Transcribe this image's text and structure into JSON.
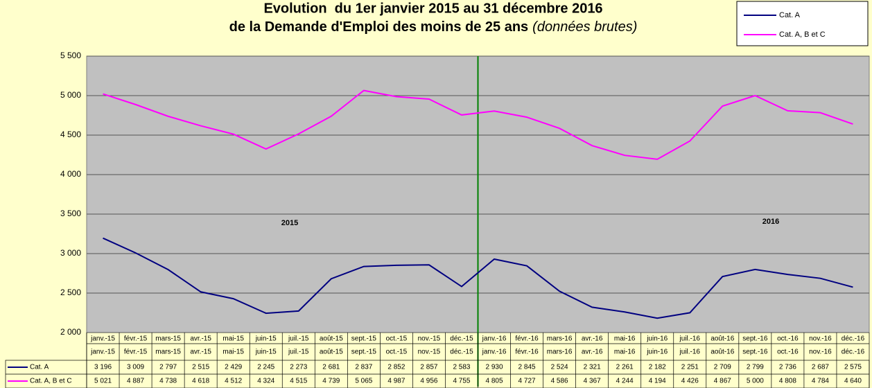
{
  "chart_data": {
    "type": "line",
    "title": [
      "Evolution  du 1er janvier 2015 au 31 décembre 2016",
      "de la Demande d'Emploi des moins de 25 ans"
    ],
    "subtitle": "(données brutes)",
    "categories": [
      "janv.-15",
      "févr.-15",
      "mars-15",
      "avr.-15",
      "mai-15",
      "juin-15",
      "juil.-15",
      "août-15",
      "sept.-15",
      "oct.-15",
      "nov.-15",
      "déc.-15",
      "janv.-16",
      "févr.-16",
      "mars-16",
      "avr.-16",
      "mai-16",
      "juin-16",
      "juil.-16",
      "août-16",
      "sept.-16",
      "oct.-16",
      "nov.-16",
      "déc.-16"
    ],
    "series": [
      {
        "name": "Cat. A",
        "color": "#000080",
        "values": [
          3196,
          3009,
          2797,
          2515,
          2429,
          2245,
          2273,
          2681,
          2837,
          2852,
          2857,
          2583,
          2930,
          2845,
          2524,
          2321,
          2261,
          2182,
          2251,
          2709,
          2799,
          2736,
          2687,
          2575
        ],
        "value_labels": [
          "3 196",
          "3 009",
          "2 797",
          "2 515",
          "2 429",
          "2 245",
          "2 273",
          "2 681",
          "2 837",
          "2 852",
          "2 857",
          "2 583",
          "2 930",
          "2 845",
          "2 524",
          "2 321",
          "2 261",
          "2 182",
          "2 251",
          "2 709",
          "2 799",
          "2 736",
          "2 687",
          "2 575"
        ]
      },
      {
        "name": "Cat. A, B et C",
        "color": "#ff00ff",
        "values": [
          5021,
          4887,
          4738,
          4618,
          4512,
          4324,
          4515,
          4739,
          5065,
          4987,
          4956,
          4755,
          4805,
          4727,
          4586,
          4367,
          4244,
          4194,
          4426,
          4867,
          5000,
          4808,
          4784,
          4640
        ],
        "value_labels": [
          "5 021",
          "4 887",
          "4 738",
          "4 618",
          "4 512",
          "4 324",
          "4 515",
          "4 739",
          "5 065",
          "4 987",
          "4 956",
          "4 755",
          "4 805",
          "4 727",
          "4 586",
          "4 367",
          "4 244",
          "4 194",
          "4 426",
          "4 867",
          "5 000",
          "4 808",
          "4 784",
          "4 640"
        ]
      }
    ],
    "ylim": [
      2000,
      5500
    ],
    "yticks": [
      {
        "value": 2000,
        "label": "2 000"
      },
      {
        "value": 2500,
        "label": "2 500"
      },
      {
        "value": 3000,
        "label": "3 000"
      },
      {
        "value": 3500,
        "label": "3 500"
      },
      {
        "value": 4000,
        "label": "4 000"
      },
      {
        "value": 4500,
        "label": "4 500"
      },
      {
        "value": 5000,
        "label": "5 000"
      },
      {
        "value": 5500,
        "label": "5 500"
      }
    ],
    "grid": true,
    "legend": "top-right",
    "annotations": [
      "2015",
      "2016"
    ]
  }
}
